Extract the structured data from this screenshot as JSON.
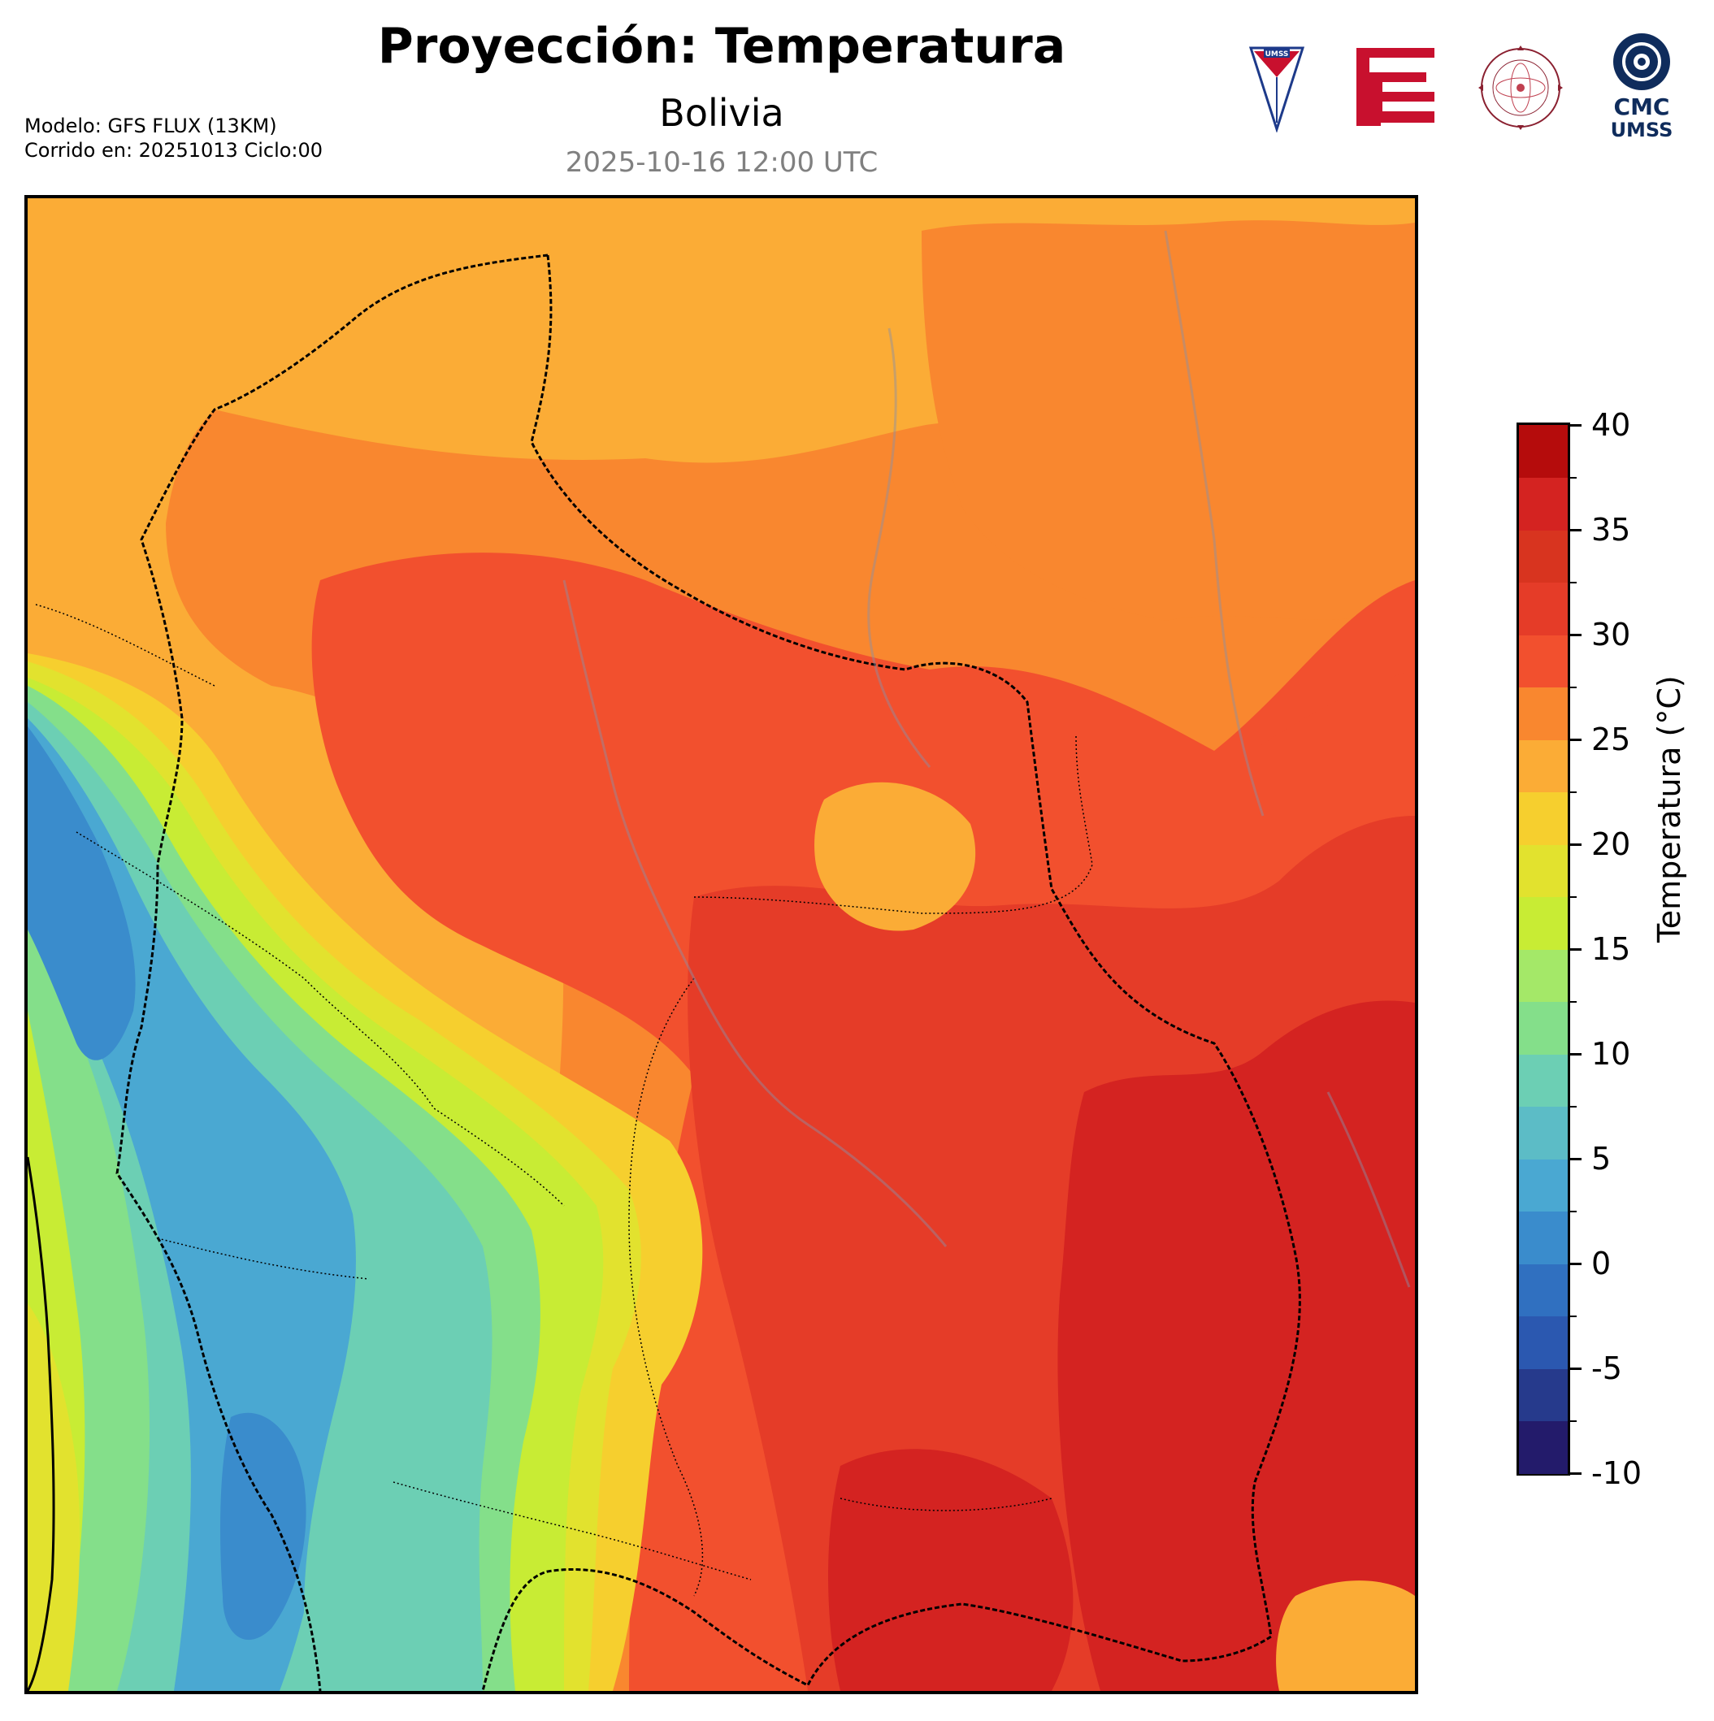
{
  "header": {
    "title": "Proyección: Temperatura",
    "region": "Bolivia",
    "valid_time": "2025-10-16 12:00 UTC",
    "model_line": "Modelo: GFS FLUX (13KM)",
    "run_line": "Corrido en: 20251013 Ciclo:00"
  },
  "logos": [
    {
      "name": "umss-shield",
      "text": "UMSS"
    },
    {
      "name": "engineering-faculty",
      "text": ""
    },
    {
      "name": "physics-department-seal",
      "text": "DEPARTAMENTO DE FÍSICA"
    },
    {
      "name": "cmc-umss",
      "line1": "CMC",
      "line2": "UMSS"
    }
  ],
  "colorbar": {
    "label": "Temperatura (°C)",
    "min": -10,
    "max": 40,
    "step": 2.5,
    "tick_labels": [
      "40",
      "35",
      "30",
      "25",
      "20",
      "15",
      "10",
      "5",
      "0",
      "-5",
      "-10"
    ],
    "colors": [
      "#231b6b",
      "#263a8c",
      "#2b58b0",
      "#3070c0",
      "#3a8ccc",
      "#4aa8d2",
      "#5cbcc6",
      "#6ccfb4",
      "#84df8a",
      "#a4e868",
      "#c8ec34",
      "#e2e22e",
      "#f6cf2e",
      "#fbac36",
      "#f9872f",
      "#f2502e",
      "#e53c28",
      "#d8341f",
      "#d42321",
      "#b50c0c"
    ]
  },
  "map": {
    "colors": {
      "warm_base": "#fbac36",
      "hot_base": "#f9872f",
      "very_hot": "#f2502e",
      "hottest": "#e53c28",
      "extreme": "#d42321",
      "cold_valley": "#6ccfb4",
      "cold_highland": "#4aa8d2",
      "coldest": "#3a8ccc",
      "transition": "#a4e868",
      "lime": "#c8ec34",
      "yellow": "#e2e22e"
    }
  }
}
